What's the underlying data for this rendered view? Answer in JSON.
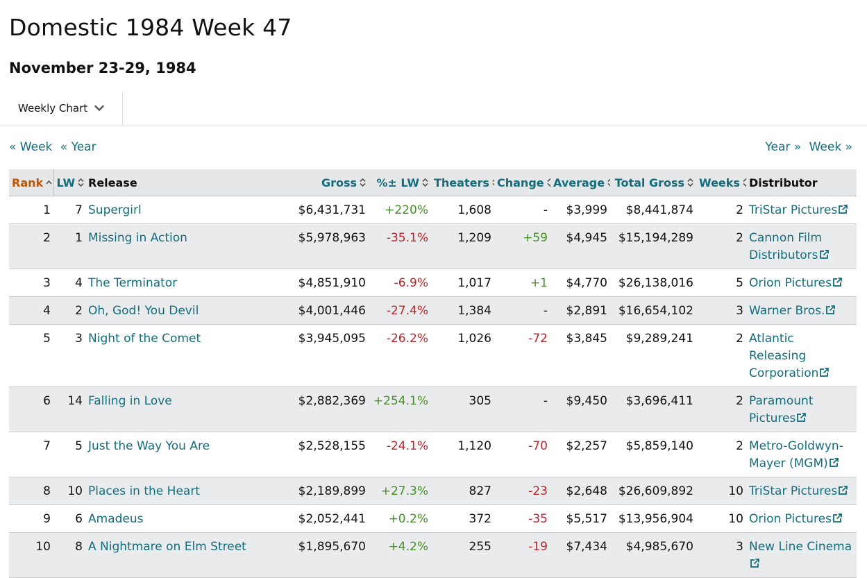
{
  "page_title": "Domestic 1984 Week 47",
  "date_range": "November 23-29, 1984",
  "view_select": {
    "label": "Weekly Chart"
  },
  "nav": {
    "prev_week": "« Week",
    "prev_year": "« Year",
    "next_year": "Year »",
    "next_week": "Week »"
  },
  "columns": {
    "rank": "Rank",
    "lw": "LW",
    "release": "Release",
    "gross": "Gross",
    "pct_lw": "%± LW",
    "theaters": "Theaters",
    "change": "Change",
    "average": "Average",
    "total_gross": "Total Gross",
    "weeks": "Weeks",
    "distributor": "Distributor"
  },
  "sorted_column": "rank",
  "colors": {
    "link": "#136d7d",
    "sorted": "#c45500",
    "positive": "#478f26",
    "negative": "#b7242a",
    "header_bg": "#e6e7e8",
    "alt_row_bg": "#eaebec"
  },
  "rows": [
    {
      "rank": "1",
      "lw": "7",
      "release": "Supergirl",
      "gross": "$6,431,731",
      "pct_lw": "+220%",
      "theaters": "1,608",
      "change": "-",
      "average": "$3,999",
      "total_gross": "$8,441,874",
      "weeks": "2",
      "distributor": "TriStar Pictures"
    },
    {
      "rank": "2",
      "lw": "1",
      "release": "Missing in Action",
      "gross": "$5,978,963",
      "pct_lw": "-35.1%",
      "theaters": "1,209",
      "change": "+59",
      "average": "$4,945",
      "total_gross": "$15,194,289",
      "weeks": "2",
      "distributor": "Cannon Film Distributors"
    },
    {
      "rank": "3",
      "lw": "4",
      "release": "The Terminator",
      "gross": "$4,851,910",
      "pct_lw": "-6.9%",
      "theaters": "1,017",
      "change": "+1",
      "average": "$4,770",
      "total_gross": "$26,138,016",
      "weeks": "5",
      "distributor": "Orion Pictures"
    },
    {
      "rank": "4",
      "lw": "2",
      "release": "Oh, God! You Devil",
      "gross": "$4,001,446",
      "pct_lw": "-27.4%",
      "theaters": "1,384",
      "change": "-",
      "average": "$2,891",
      "total_gross": "$16,654,102",
      "weeks": "3",
      "distributor": "Warner Bros."
    },
    {
      "rank": "5",
      "lw": "3",
      "release": "Night of the Comet",
      "gross": "$3,945,095",
      "pct_lw": "-26.2%",
      "theaters": "1,026",
      "change": "-72",
      "average": "$3,845",
      "total_gross": "$9,289,241",
      "weeks": "2",
      "distributor": "Atlantic Releasing Corporation"
    },
    {
      "rank": "6",
      "lw": "14",
      "release": "Falling in Love",
      "gross": "$2,882,369",
      "pct_lw": "+254.1%",
      "theaters": "305",
      "change": "-",
      "average": "$9,450",
      "total_gross": "$3,696,411",
      "weeks": "2",
      "distributor": "Paramount Pictures"
    },
    {
      "rank": "7",
      "lw": "5",
      "release": "Just the Way You Are",
      "gross": "$2,528,155",
      "pct_lw": "-24.1%",
      "theaters": "1,120",
      "change": "-70",
      "average": "$2,257",
      "total_gross": "$5,859,140",
      "weeks": "2",
      "distributor": "Metro-Goldwyn-Mayer (MGM)"
    },
    {
      "rank": "8",
      "lw": "10",
      "release": "Places in the Heart",
      "gross": "$2,189,899",
      "pct_lw": "+27.3%",
      "theaters": "827",
      "change": "-23",
      "average": "$2,648",
      "total_gross": "$26,609,892",
      "weeks": "10",
      "distributor": "TriStar Pictures"
    },
    {
      "rank": "9",
      "lw": "6",
      "release": "Amadeus",
      "gross": "$2,052,441",
      "pct_lw": "+0.2%",
      "theaters": "372",
      "change": "-35",
      "average": "$5,517",
      "total_gross": "$13,956,904",
      "weeks": "10",
      "distributor": "Orion Pictures"
    },
    {
      "rank": "10",
      "lw": "8",
      "release": "A Nightmare on Elm Street",
      "gross": "$1,895,670",
      "pct_lw": "+4.2%",
      "theaters": "255",
      "change": "-19",
      "average": "$7,434",
      "total_gross": "$4,985,670",
      "weeks": "3",
      "distributor": "New Line Cinema"
    }
  ]
}
